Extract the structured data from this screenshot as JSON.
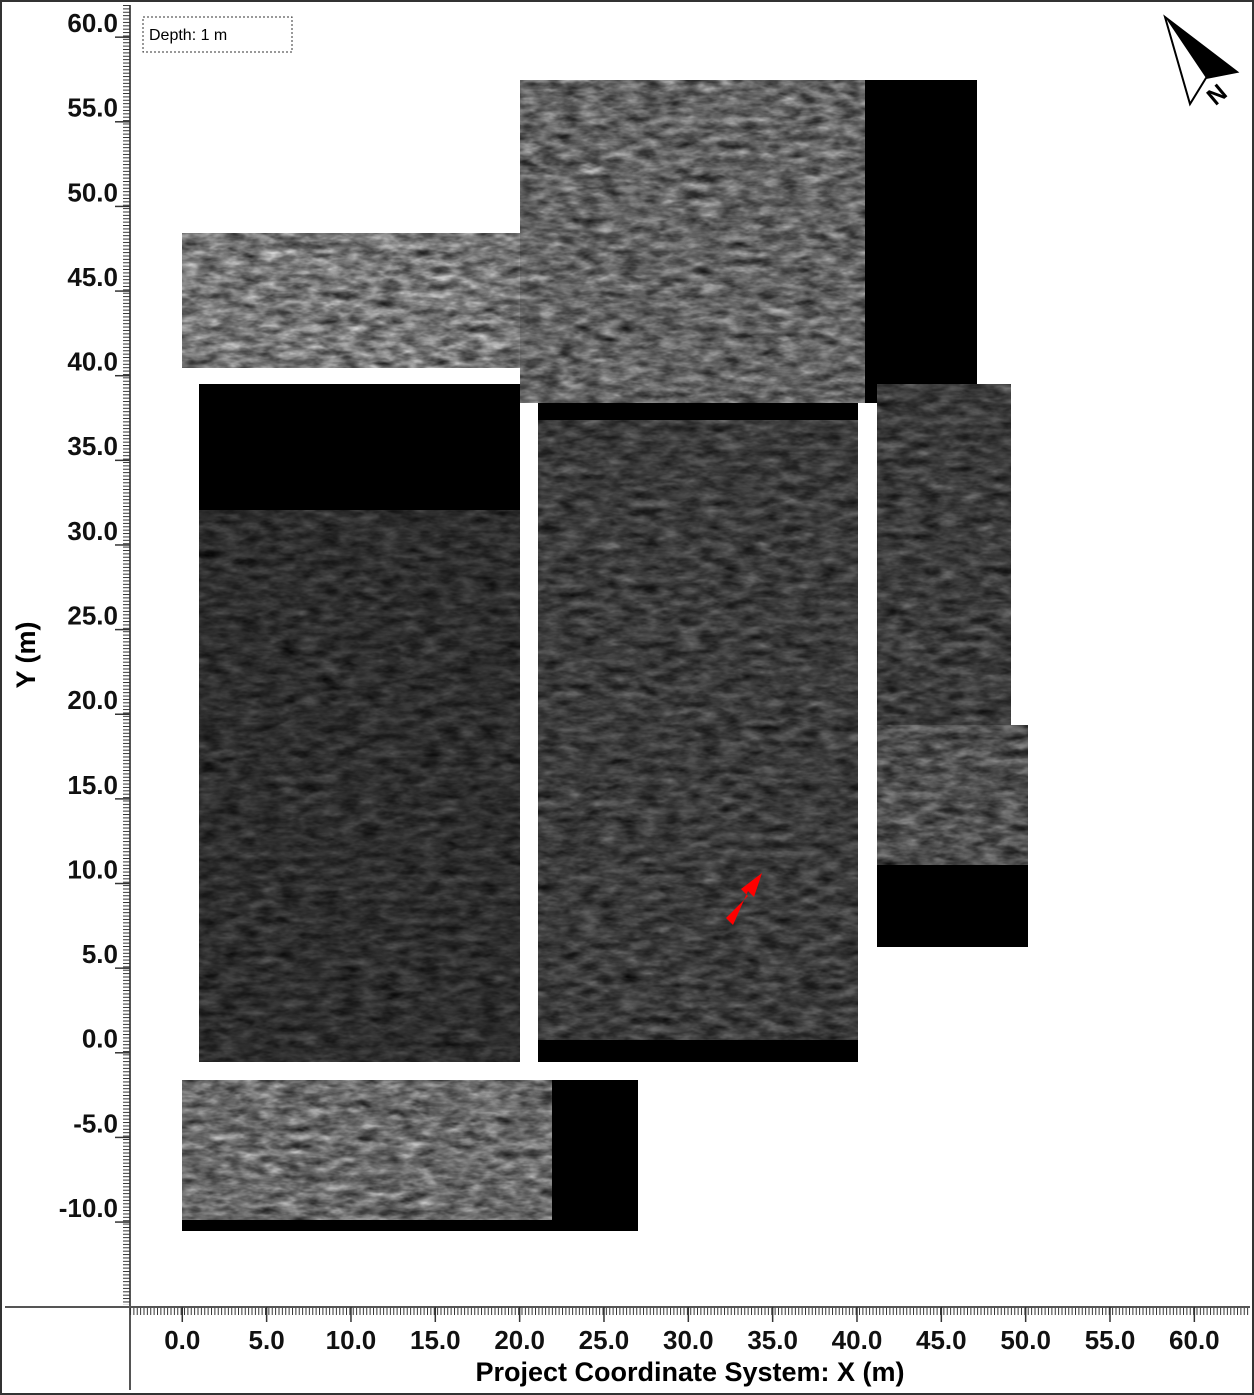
{
  "chart_data": {
    "type": "image-map",
    "xlabel": "Project Coordinate System: X (m)",
    "ylabel": "Y (m)",
    "annotation": "Depth: 1 m",
    "north_label": "N",
    "xlim": [
      -3.1,
      63.3
    ],
    "ylim": [
      -14.9,
      61.9
    ],
    "xticks": [
      {
        "value": 0,
        "label": "0.0"
      },
      {
        "value": 5,
        "label": "5.0"
      },
      {
        "value": 10,
        "label": "10.0"
      },
      {
        "value": 15,
        "label": "15.0"
      },
      {
        "value": 20,
        "label": "20.0"
      },
      {
        "value": 25,
        "label": "25.0"
      },
      {
        "value": 30,
        "label": "30.0"
      },
      {
        "value": 35,
        "label": "35.0"
      },
      {
        "value": 40,
        "label": "40.0"
      },
      {
        "value": 45,
        "label": "45.0"
      },
      {
        "value": 50,
        "label": "50.0"
      },
      {
        "value": 55,
        "label": "55.0"
      },
      {
        "value": 60,
        "label": "60.0"
      }
    ],
    "yticks": [
      {
        "value": -10,
        "label": "-10.0"
      },
      {
        "value": -5,
        "label": "-5.0"
      },
      {
        "value": 0,
        "label": "0.0"
      },
      {
        "value": 5,
        "label": "5.0"
      },
      {
        "value": 10,
        "label": "10.0"
      },
      {
        "value": 15,
        "label": "15.0"
      },
      {
        "value": 20,
        "label": "20.0"
      },
      {
        "value": 25,
        "label": "25.0"
      },
      {
        "value": 30,
        "label": "30.0"
      },
      {
        "value": 35,
        "label": "35.0"
      },
      {
        "value": 40,
        "label": "40.0"
      },
      {
        "value": 45,
        "label": "45.0"
      },
      {
        "value": 50,
        "label": "50.0"
      },
      {
        "value": 55,
        "label": "55.0"
      },
      {
        "value": 60,
        "label": "60.0"
      }
    ]
  }
}
